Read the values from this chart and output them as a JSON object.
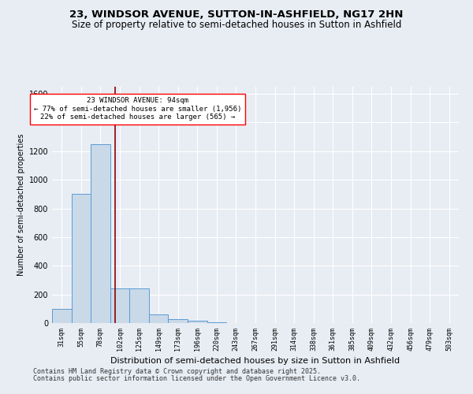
{
  "title": "23, WINDSOR AVENUE, SUTTON-IN-ASHFIELD, NG17 2HN",
  "subtitle": "Size of property relative to semi-detached houses in Sutton in Ashfield",
  "xlabel": "Distribution of semi-detached houses by size in Sutton in Ashfield",
  "ylabel": "Number of semi-detached properties",
  "bar_labels": [
    "31sqm",
    "55sqm",
    "78sqm",
    "102sqm",
    "125sqm",
    "149sqm",
    "173sqm",
    "196sqm",
    "220sqm",
    "243sqm",
    "267sqm",
    "291sqm",
    "314sqm",
    "338sqm",
    "361sqm",
    "385sqm",
    "409sqm",
    "432sqm",
    "456sqm",
    "479sqm",
    "503sqm"
  ],
  "bar_values": [
    100,
    900,
    1250,
    240,
    240,
    60,
    25,
    15,
    5,
    2,
    1,
    0,
    0,
    0,
    0,
    0,
    0,
    0,
    0,
    0,
    0
  ],
  "bar_color": "#c9d9e8",
  "bar_edge_color": "#5b9bd5",
  "background_color": "#e8edf4",
  "grid_color": "#ffffff",
  "red_line_x": 2.77,
  "annotation_title": "23 WINDSOR AVENUE: 94sqm",
  "annotation_line1": "← 77% of semi-detached houses are smaller (1,956)",
  "annotation_line2": "22% of semi-detached houses are larger (565) →",
  "ylim": [
    0,
    1650
  ],
  "yticks": [
    0,
    200,
    400,
    600,
    800,
    1000,
    1200,
    1400,
    1600
  ],
  "footer1": "Contains HM Land Registry data © Crown copyright and database right 2025.",
  "footer2": "Contains public sector information licensed under the Open Government Licence v3.0.",
  "title_fontsize": 9.5,
  "subtitle_fontsize": 8.5,
  "annotation_fontsize": 6.5,
  "footer_fontsize": 6,
  "ylabel_fontsize": 7,
  "xlabel_fontsize": 8
}
